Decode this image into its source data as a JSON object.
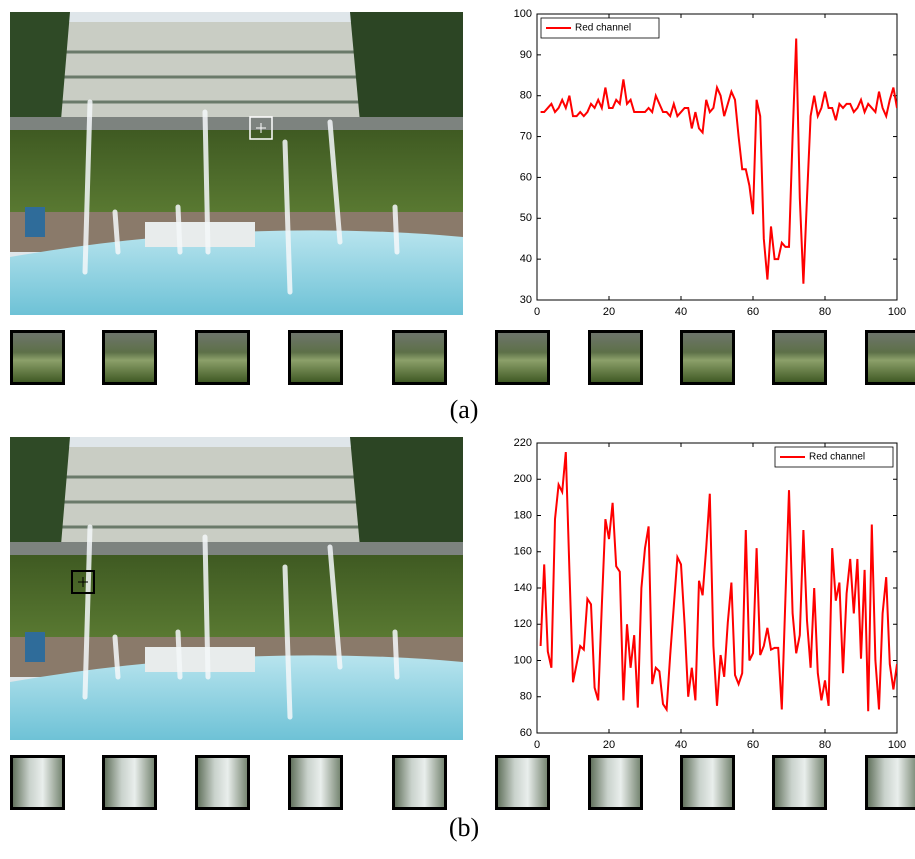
{
  "chart_data": [
    {
      "type": "line",
      "xlim": [
        0,
        100
      ],
      "ylim": [
        30,
        100
      ],
      "xticks": [
        0,
        20,
        40,
        60,
        80,
        100
      ],
      "yticks": [
        30,
        40,
        50,
        60,
        70,
        80,
        90,
        100
      ],
      "legend": "upper left",
      "x": [
        1,
        2,
        3,
        4,
        5,
        6,
        7,
        8,
        9,
        10,
        11,
        12,
        13,
        14,
        15,
        16,
        17,
        18,
        19,
        20,
        21,
        22,
        23,
        24,
        25,
        26,
        27,
        28,
        29,
        30,
        31,
        32,
        33,
        34,
        35,
        36,
        37,
        38,
        39,
        40,
        41,
        42,
        43,
        44,
        45,
        46,
        47,
        48,
        49,
        50,
        51,
        52,
        53,
        54,
        55,
        56,
        57,
        58,
        59,
        60,
        61,
        62,
        63,
        64,
        65,
        66,
        67,
        68,
        69,
        70,
        71,
        72,
        73,
        74,
        75,
        76,
        77,
        78,
        79,
        80,
        81,
        82,
        83,
        84,
        85,
        86,
        87,
        88,
        89,
        90,
        91,
        92,
        93,
        94,
        95,
        96,
        97,
        98,
        99,
        100
      ],
      "series": [
        {
          "name": "Red channel",
          "color": "#ff0000",
          "values": [
            76,
            76,
            77,
            78,
            76,
            77,
            79,
            77,
            80,
            75,
            75,
            76,
            75,
            76,
            78,
            77,
            79,
            77,
            82,
            77,
            77,
            79,
            78,
            84,
            78,
            79,
            76,
            76,
            76,
            76,
            77,
            76,
            80,
            78,
            76,
            76,
            75,
            78,
            75,
            76,
            77,
            77,
            72,
            76,
            72,
            71,
            79,
            76,
            77,
            82,
            80,
            75,
            78,
            81,
            79,
            70,
            62,
            62,
            58,
            51,
            79,
            75,
            45,
            35,
            48,
            40,
            40,
            44,
            43,
            43,
            70,
            94,
            55,
            34,
            55,
            75,
            80,
            75,
            77,
            81,
            77,
            77,
            74,
            78,
            77,
            78,
            78,
            76,
            77,
            79,
            76,
            78,
            77,
            76,
            81,
            77,
            75,
            79,
            82,
            77
          ]
        }
      ]
    },
    {
      "type": "line",
      "xlim": [
        0,
        100
      ],
      "ylim": [
        60,
        220
      ],
      "xticks": [
        0,
        20,
        40,
        60,
        80,
        100
      ],
      "yticks": [
        60,
        80,
        100,
        120,
        140,
        160,
        180,
        200,
        220
      ],
      "legend": "upper right",
      "x": [
        1,
        2,
        3,
        4,
        5,
        6,
        7,
        8,
        9,
        10,
        11,
        12,
        13,
        14,
        15,
        16,
        17,
        18,
        19,
        20,
        21,
        22,
        23,
        24,
        25,
        26,
        27,
        28,
        29,
        30,
        31,
        32,
        33,
        34,
        35,
        36,
        37,
        38,
        39,
        40,
        41,
        42,
        43,
        44,
        45,
        46,
        47,
        48,
        49,
        50,
        51,
        52,
        53,
        54,
        55,
        56,
        57,
        58,
        59,
        60,
        61,
        62,
        63,
        64,
        65,
        66,
        67,
        68,
        69,
        70,
        71,
        72,
        73,
        74,
        75,
        76,
        77,
        78,
        79,
        80,
        81,
        82,
        83,
        84,
        85,
        86,
        87,
        88,
        89,
        90,
        91,
        92,
        93,
        94,
        95,
        96,
        97,
        98,
        99,
        100
      ],
      "series": [
        {
          "name": "Red channel",
          "color": "#ff0000",
          "values": [
            108,
            153,
            105,
            96,
            178,
            197,
            193,
            215,
            150,
            88,
            98,
            108,
            106,
            134,
            131,
            85,
            78,
            130,
            178,
            167,
            187,
            152,
            149,
            78,
            120,
            96,
            114,
            74,
            140,
            162,
            174,
            87,
            96,
            94,
            76,
            73,
            103,
            130,
            157,
            153,
            120,
            80,
            96,
            78,
            144,
            136,
            162,
            192,
            108,
            75,
            103,
            91,
            121,
            143,
            92,
            87,
            93,
            172,
            100,
            104,
            162,
            103,
            108,
            118,
            106,
            107,
            107,
            73,
            134,
            194,
            126,
            104,
            114,
            172,
            122,
            96,
            140,
            93,
            78,
            89,
            75,
            162,
            133,
            143,
            93,
            137,
            156,
            126,
            156,
            101,
            150,
            72,
            175,
            100,
            73,
            126,
            146,
            98,
            84,
            98
          ]
        }
      ]
    }
  ],
  "panel_labels": [
    "(a)",
    "(b)"
  ]
}
